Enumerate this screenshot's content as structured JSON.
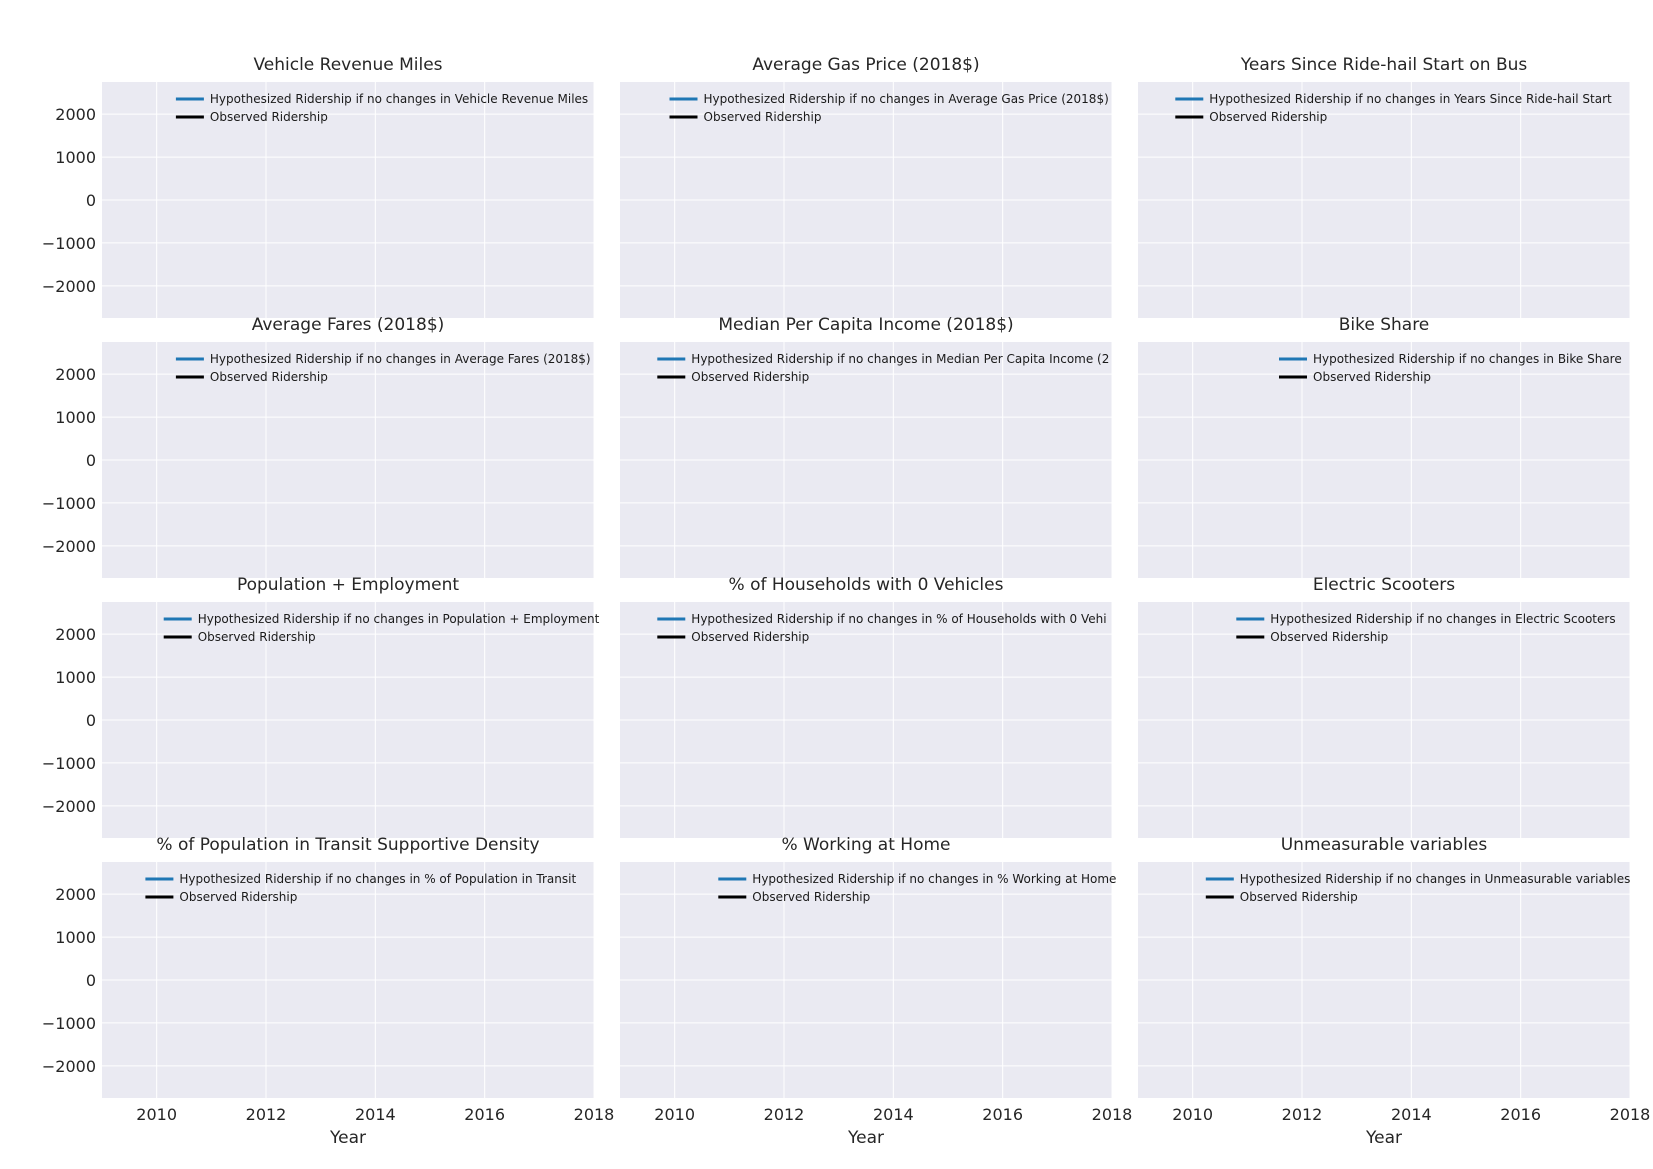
{
  "colors": {
    "figure_bg": "#ffffff",
    "axes_bg": "#eaeaf2",
    "grid": "#ffffff",
    "hypothesized_line": "#1f77b4",
    "observed_line": "#000000"
  },
  "chart_data": [
    {
      "type": "line",
      "title": "Vehicle Revenue Miles",
      "xlabel": "",
      "ylabel": "",
      "xlim": [
        2009,
        2018
      ],
      "ylim": [
        -2750,
        2750
      ],
      "xticks": [],
      "yticks": [
        -2000,
        -1000,
        0,
        1000,
        2000
      ],
      "grid": true,
      "legend_loc": "upper right",
      "legend": [
        "Hypothesized Ridership if no changes in Vehicle Revenue Miles",
        "Observed Ridership"
      ],
      "series": [
        {
          "name": "Hypothesized Ridership if no changes in Vehicle Revenue Miles",
          "x": [],
          "y": []
        },
        {
          "name": "Observed Ridership",
          "x": [],
          "y": []
        }
      ]
    },
    {
      "type": "line",
      "title": "Average Gas Price (2018$)",
      "xlabel": "",
      "ylabel": "",
      "xlim": [
        2009,
        2018
      ],
      "ylim": [
        -2750,
        2750
      ],
      "xticks": [],
      "yticks": [],
      "grid": true,
      "legend_loc": "upper right",
      "legend": [
        "Hypothesized Ridership if no changes in Average Gas Price (2018$)",
        "Observed Ridership"
      ],
      "series": [
        {
          "name": "Hypothesized Ridership if no changes in Average Gas Price (2018$)",
          "x": [],
          "y": []
        },
        {
          "name": "Observed Ridership",
          "x": [],
          "y": []
        }
      ]
    },
    {
      "type": "line",
      "title": "Years Since Ride-hail Start on Bus",
      "xlabel": "",
      "ylabel": "",
      "xlim": [
        2009,
        2018
      ],
      "ylim": [
        -2750,
        2750
      ],
      "xticks": [],
      "yticks": [],
      "grid": true,
      "legend_loc": "upper right",
      "legend": [
        "Hypothesized Ridership if no changes in Years Since Ride-hail Start",
        "Observed Ridership"
      ],
      "series": [
        {
          "name": "Hypothesized Ridership if no changes in Years Since Ride-hail Start",
          "x": [],
          "y": []
        },
        {
          "name": "Observed Ridership",
          "x": [],
          "y": []
        }
      ]
    },
    {
      "type": "line",
      "title": "Average Fares (2018$)",
      "xlabel": "",
      "ylabel": "",
      "xlim": [
        2009,
        2018
      ],
      "ylim": [
        -2750,
        2750
      ],
      "xticks": [],
      "yticks": [
        -2000,
        -1000,
        0,
        1000,
        2000
      ],
      "grid": true,
      "legend_loc": "upper right",
      "legend": [
        "Hypothesized Ridership if no changes in Average Fares (2018$)",
        "Observed Ridership"
      ],
      "series": [
        {
          "name": "Hypothesized Ridership if no changes in Average Fares (2018$)",
          "x": [],
          "y": []
        },
        {
          "name": "Observed Ridership",
          "x": [],
          "y": []
        }
      ]
    },
    {
      "type": "line",
      "title": "Median Per Capita Income (2018$)",
      "xlabel": "",
      "ylabel": "",
      "xlim": [
        2009,
        2018
      ],
      "ylim": [
        -2750,
        2750
      ],
      "xticks": [],
      "yticks": [],
      "grid": true,
      "legend_loc": "upper right",
      "legend": [
        "Hypothesized Ridership if no changes in Median Per Capita Income (2",
        "Observed Ridership"
      ],
      "series": [
        {
          "name": "Hypothesized Ridership if no changes in Median Per Capita Income (2",
          "x": [],
          "y": []
        },
        {
          "name": "Observed Ridership",
          "x": [],
          "y": []
        }
      ]
    },
    {
      "type": "line",
      "title": "Bike Share",
      "xlabel": "",
      "ylabel": "",
      "xlim": [
        2009,
        2018
      ],
      "ylim": [
        -2750,
        2750
      ],
      "xticks": [],
      "yticks": [],
      "grid": true,
      "legend_loc": "upper right",
      "legend": [
        "Hypothesized Ridership if no changes in Bike Share",
        "Observed Ridership"
      ],
      "series": [
        {
          "name": "Hypothesized Ridership if no changes in Bike Share",
          "x": [],
          "y": []
        },
        {
          "name": "Observed Ridership",
          "x": [],
          "y": []
        }
      ]
    },
    {
      "type": "line",
      "title": "Population + Employment",
      "xlabel": "",
      "ylabel": "",
      "xlim": [
        2009,
        2018
      ],
      "ylim": [
        -2750,
        2750
      ],
      "xticks": [],
      "yticks": [
        -2000,
        -1000,
        0,
        1000,
        2000
      ],
      "grid": true,
      "legend_loc": "upper right",
      "legend": [
        "Hypothesized Ridership if no changes in Population + Employment",
        "Observed Ridership"
      ],
      "series": [
        {
          "name": "Hypothesized Ridership if no changes in Population + Employment",
          "x": [],
          "y": []
        },
        {
          "name": "Observed Ridership",
          "x": [],
          "y": []
        }
      ]
    },
    {
      "type": "line",
      "title": "% of Households with 0 Vehicles",
      "xlabel": "",
      "ylabel": "",
      "xlim": [
        2009,
        2018
      ],
      "ylim": [
        -2750,
        2750
      ],
      "xticks": [],
      "yticks": [],
      "grid": true,
      "legend_loc": "upper right",
      "legend": [
        "Hypothesized Ridership if no changes in % of Households with 0 Vehi",
        "Observed Ridership"
      ],
      "series": [
        {
          "name": "Hypothesized Ridership if no changes in % of Households with 0 Vehi",
          "x": [],
          "y": []
        },
        {
          "name": "Observed Ridership",
          "x": [],
          "y": []
        }
      ]
    },
    {
      "type": "line",
      "title": "Electric Scooters",
      "xlabel": "",
      "ylabel": "",
      "xlim": [
        2009,
        2018
      ],
      "ylim": [
        -2750,
        2750
      ],
      "xticks": [],
      "yticks": [],
      "grid": true,
      "legend_loc": "upper right",
      "legend": [
        "Hypothesized Ridership if no changes in Electric Scooters",
        "Observed Ridership"
      ],
      "series": [
        {
          "name": "Hypothesized Ridership if no changes in Electric Scooters",
          "x": [],
          "y": []
        },
        {
          "name": "Observed Ridership",
          "x": [],
          "y": []
        }
      ]
    },
    {
      "type": "line",
      "title": "% of Population in Transit Supportive Density",
      "xlabel": "Year",
      "ylabel": "",
      "xlim": [
        2009,
        2018
      ],
      "ylim": [
        -2750,
        2750
      ],
      "xticks": [
        2010,
        2012,
        2014,
        2016,
        2018
      ],
      "yticks": [
        -2000,
        -1000,
        0,
        1000,
        2000
      ],
      "grid": true,
      "legend_loc": "upper right",
      "legend": [
        "Hypothesized Ridership if no changes in % of Population in Transit",
        "Observed Ridership"
      ],
      "series": [
        {
          "name": "Hypothesized Ridership if no changes in % of Population in Transit",
          "x": [],
          "y": []
        },
        {
          "name": "Observed Ridership",
          "x": [],
          "y": []
        }
      ]
    },
    {
      "type": "line",
      "title": "% Working at Home",
      "xlabel": "Year",
      "ylabel": "",
      "xlim": [
        2009,
        2018
      ],
      "ylim": [
        -2750,
        2750
      ],
      "xticks": [
        2010,
        2012,
        2014,
        2016,
        2018
      ],
      "yticks": [],
      "grid": true,
      "legend_loc": "upper right",
      "legend": [
        "Hypothesized Ridership if no changes in % Working at Home",
        "Observed Ridership"
      ],
      "series": [
        {
          "name": "Hypothesized Ridership if no changes in % Working at Home",
          "x": [],
          "y": []
        },
        {
          "name": "Observed Ridership",
          "x": [],
          "y": []
        }
      ]
    },
    {
      "type": "line",
      "title": "Unmeasurable variables",
      "xlabel": "Year",
      "ylabel": "",
      "xlim": [
        2009,
        2018
      ],
      "ylim": [
        -2750,
        2750
      ],
      "xticks": [
        2010,
        2012,
        2014,
        2016,
        2018
      ],
      "yticks": [],
      "grid": true,
      "legend_loc": "upper right",
      "legend": [
        "Hypothesized Ridership if no changes in Unmeasurable variables",
        "Observed Ridership"
      ],
      "series": [
        {
          "name": "Hypothesized Ridership if no changes in Unmeasurable variables",
          "x": [],
          "y": []
        },
        {
          "name": "Observed Ridership",
          "x": [],
          "y": []
        }
      ]
    }
  ]
}
